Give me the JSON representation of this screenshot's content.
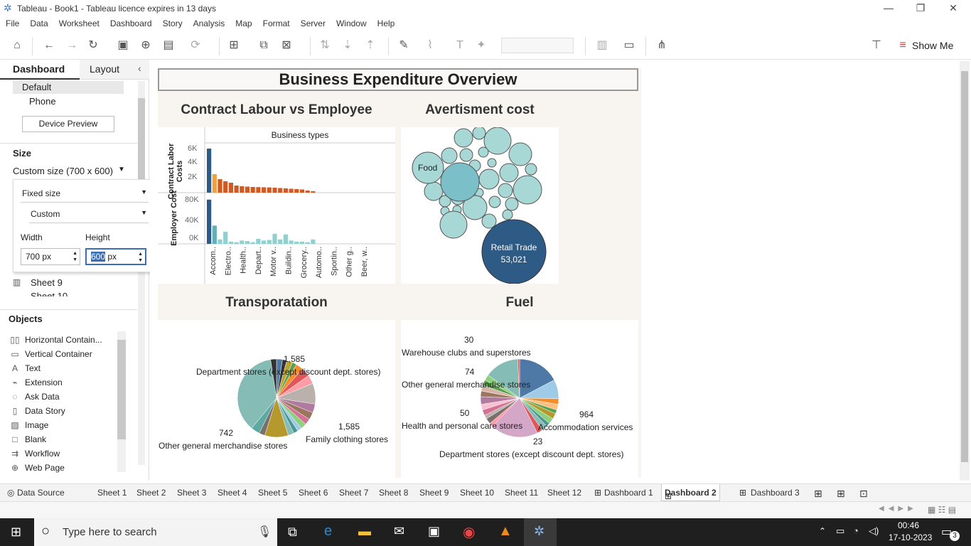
{
  "window": {
    "title": "Tableau - Book1 - Tableau licence expires in 13 days"
  },
  "menu": [
    "File",
    "Data",
    "Worksheet",
    "Dashboard",
    "Story",
    "Analysis",
    "Map",
    "Format",
    "Server",
    "Window",
    "Help"
  ],
  "toolbar": {
    "show_me": "Show Me"
  },
  "left_panel": {
    "tab_dashboard": "Dashboard",
    "tab_layout": "Layout",
    "device_default": "Default",
    "device_phone": "Phone",
    "device_preview": "Device Preview",
    "size_label": "Size",
    "size_value": "Custom size (700 x 600)",
    "fixed_size": "Fixed size",
    "custom": "Custom",
    "width_label": "Width",
    "height_label": "Height",
    "width_value": "700 px",
    "height_value": "600",
    "height_unit": "px",
    "sheet9": "Sheet 9",
    "sheet10": "Sheet 10",
    "objects_label": "Objects",
    "objects": [
      "Horizontal Contain...",
      "Vertical Container",
      "Text",
      "Extension",
      "Ask Data",
      "Data Story",
      "Image",
      "Blank",
      "Workflow",
      "Web Page"
    ]
  },
  "dashboard": {
    "title": "Business Expenditure Overview",
    "labour_title": "Contract Labour vs Employee",
    "adv_title": "Avertisment cost",
    "trans_title": "Transporatation",
    "fuel_title": "Fuel",
    "bar_header": "Business types",
    "y1_label": "Contract Labor Costs",
    "y1_ticks": [
      "6K",
      "4K",
      "2K"
    ],
    "y2_label": "Employer Cost",
    "y2_ticks": [
      "80K",
      "40K",
      "0K"
    ],
    "x_labels": [
      "Accom..",
      "Electro..",
      "Health..",
      "Depart..",
      "Motor v..",
      "Buildin..",
      "Grocery..",
      "Automo..",
      "Sportin..",
      "Other g..",
      "Beer, w.."
    ],
    "bubble_food": "Food",
    "bubble_retail": "Retail Trade",
    "bubble_retail_value": "53,021",
    "trans_labels": {
      "a_val": "1,585",
      "a": "Department stores (except discount dept. stores)",
      "b_val": "1,585",
      "b": "Family clothing stores",
      "c_val": "742",
      "c": "Other general merchandise stores"
    },
    "fuel_labels": {
      "a_val": "30",
      "a": "Warehouse clubs and superstores",
      "b_val": "74",
      "b": "Other general merchandise stores",
      "c_val": "50",
      "c": "Health and personal care stores",
      "d_val": "964",
      "d": "Accommodation services",
      "e_val": "23",
      "e": "Department stores (except discount dept. stores)"
    }
  },
  "chart_data": [
    {
      "type": "bar",
      "name": "Contract Labor Costs",
      "categories_count": 20,
      "values": [
        6200,
        2600,
        1900,
        1600,
        1400,
        1000,
        900,
        850,
        800,
        780,
        760,
        740,
        700,
        650,
        600,
        550,
        500,
        450,
        300,
        200
      ],
      "ylim": [
        0,
        7000
      ]
    },
    {
      "type": "bar",
      "name": "Employer Cost",
      "values": [
        80000,
        33000,
        8000,
        22000,
        4000,
        3000,
        6000,
        5000,
        3000,
        9000,
        6000,
        7000,
        18000,
        8000,
        17000,
        6000,
        4000,
        4000,
        3000,
        8000
      ],
      "ylim": [
        0,
        90000
      ]
    }
  ],
  "sheet_tabs": [
    "Data Source",
    "Sheet 1",
    "Sheet 2",
    "Sheet 3",
    "Sheet 4",
    "Sheet 5",
    "Sheet 6",
    "Sheet 7",
    "Sheet 8",
    "Sheet 9",
    "Sheet 10",
    "Sheet 11",
    "Sheet 12",
    "Dashboard 1",
    "Dashboard 2",
    "Dashboard 3"
  ],
  "taskbar": {
    "search_placeholder": "Type here to search",
    "time": "00:46",
    "date": "17-10-2023",
    "notifications": "3"
  }
}
